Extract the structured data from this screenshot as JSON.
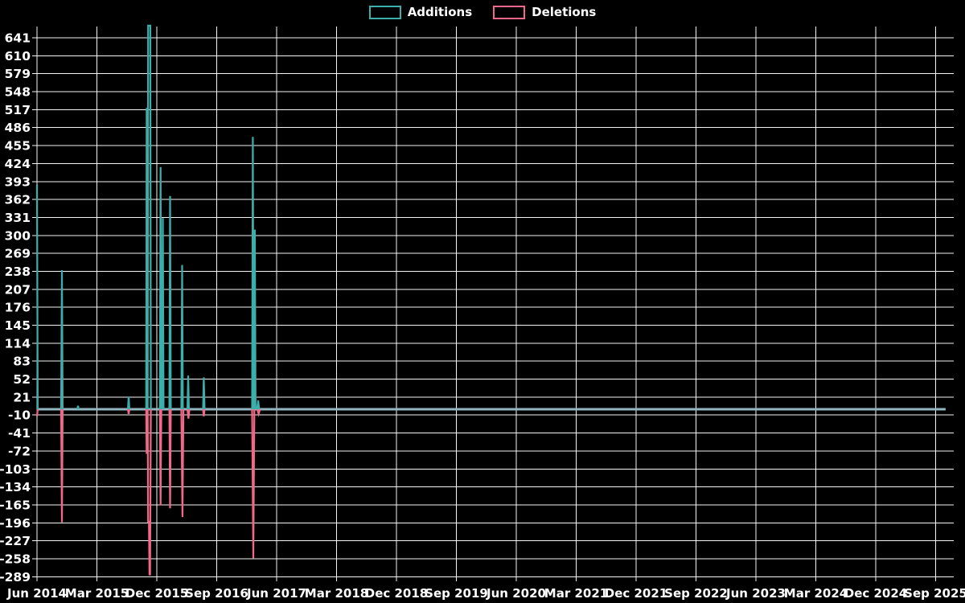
{
  "legend": {
    "additions_label": "Additions",
    "deletions_label": "Deletions"
  },
  "colors": {
    "background": "#000000",
    "grid": "#f5f5f5",
    "text": "#ffffff",
    "additions": "#3aafac",
    "deletions": "#f3688a",
    "zero_baseline": "#92b6c0"
  },
  "chart_data": {
    "type": "line",
    "title": "",
    "xlabel": "",
    "ylabel": "",
    "grid": true,
    "legend_position": "top-center",
    "x_unit": "months since Jun 2014",
    "xlim": [
      0,
      135
    ],
    "ylim": [
      -289,
      660
    ],
    "y_tick_step": 31,
    "y_ticks": [
      641,
      610,
      579,
      548,
      517,
      486,
      455,
      424,
      393,
      362,
      331,
      300,
      269,
      238,
      207,
      176,
      145,
      114,
      83,
      52,
      21,
      -10,
      -41,
      -72,
      -103,
      -134,
      -165,
      -196,
      -227,
      -258,
      -289
    ],
    "x_ticks": [
      {
        "t": 0,
        "label": "Jun 2014"
      },
      {
        "t": 9,
        "label": "Mar 2015"
      },
      {
        "t": 18,
        "label": "Dec 2015"
      },
      {
        "t": 27,
        "label": "Sep 2016"
      },
      {
        "t": 36,
        "label": "Jun 2017"
      },
      {
        "t": 45,
        "label": "Mar 2018"
      },
      {
        "t": 54,
        "label": "Dec 2018"
      },
      {
        "t": 63,
        "label": "Sep 2019"
      },
      {
        "t": 72,
        "label": "Jun 2020"
      },
      {
        "t": 81,
        "label": "Mar 2021"
      },
      {
        "t": 90,
        "label": "Dec 2021"
      },
      {
        "t": 99,
        "label": "Sep 2022"
      },
      {
        "t": 108,
        "label": "Jun 2023"
      },
      {
        "t": 117,
        "label": "Mar 2024"
      },
      {
        "t": 126,
        "label": "Dec 2024"
      },
      {
        "t": 135,
        "label": "Sep 2025"
      }
    ],
    "series": [
      {
        "name": "Additions",
        "color_key": "additions",
        "points": [
          [
            0,
            388
          ],
          [
            0.11,
            0
          ],
          [
            3.63,
            0
          ],
          [
            3.74,
            240
          ],
          [
            3.85,
            0
          ],
          [
            6.05,
            0
          ],
          [
            6.16,
            6
          ],
          [
            6.27,
            0
          ],
          [
            13.66,
            0
          ],
          [
            13.77,
            22
          ],
          [
            13.88,
            0
          ],
          [
            16.4,
            0
          ],
          [
            16.48,
            520
          ],
          [
            16.56,
            0
          ],
          [
            16.62,
            0
          ],
          [
            16.7,
            662
          ],
          [
            17.02,
            662
          ],
          [
            17.1,
            0
          ],
          [
            18.46,
            0
          ],
          [
            18.57,
            418
          ],
          [
            18.68,
            0
          ],
          [
            18.79,
            0
          ],
          [
            18.9,
            330
          ],
          [
            19.01,
            0
          ],
          [
            19.88,
            0
          ],
          [
            19.99,
            368
          ],
          [
            20.1,
            0
          ],
          [
            21.69,
            0
          ],
          [
            21.8,
            249
          ],
          [
            21.91,
            0
          ],
          [
            22.6,
            0
          ],
          [
            22.71,
            58
          ],
          [
            22.82,
            0
          ],
          [
            24.95,
            0
          ],
          [
            25.06,
            55
          ],
          [
            25.17,
            0
          ],
          [
            32.32,
            0
          ],
          [
            32.43,
            470
          ],
          [
            32.54,
            0
          ],
          [
            32.62,
            0
          ],
          [
            32.73,
            310
          ],
          [
            32.84,
            0
          ],
          [
            33.05,
            0
          ],
          [
            33.22,
            15
          ],
          [
            33.39,
            0
          ],
          [
            136.5,
            0
          ]
        ]
      },
      {
        "name": "Deletions",
        "color_key": "deletions",
        "points": [
          [
            0,
            -12
          ],
          [
            0.11,
            0
          ],
          [
            3.63,
            0
          ],
          [
            3.74,
            -195
          ],
          [
            3.85,
            0
          ],
          [
            13.66,
            0
          ],
          [
            13.77,
            -8
          ],
          [
            13.88,
            0
          ],
          [
            16.4,
            0
          ],
          [
            16.48,
            -77
          ],
          [
            16.56,
            0
          ],
          [
            16.62,
            0
          ],
          [
            16.7,
            -194
          ],
          [
            16.82,
            -194
          ],
          [
            16.9,
            -285
          ],
          [
            16.98,
            -285
          ],
          [
            17.1,
            0
          ],
          [
            18.46,
            0
          ],
          [
            18.57,
            -166
          ],
          [
            18.68,
            0
          ],
          [
            19.88,
            0
          ],
          [
            19.99,
            -171
          ],
          [
            20.1,
            0
          ],
          [
            21.69,
            0
          ],
          [
            21.85,
            -186
          ],
          [
            22.0,
            0
          ],
          [
            22.6,
            0
          ],
          [
            22.75,
            -16
          ],
          [
            22.9,
            0
          ],
          [
            24.95,
            0
          ],
          [
            25.06,
            -12
          ],
          [
            25.17,
            0
          ],
          [
            32.32,
            0
          ],
          [
            32.5,
            -257
          ],
          [
            32.65,
            0
          ],
          [
            33.1,
            0
          ],
          [
            33.3,
            -8
          ],
          [
            33.5,
            0
          ],
          [
            136.5,
            0
          ]
        ]
      }
    ]
  }
}
